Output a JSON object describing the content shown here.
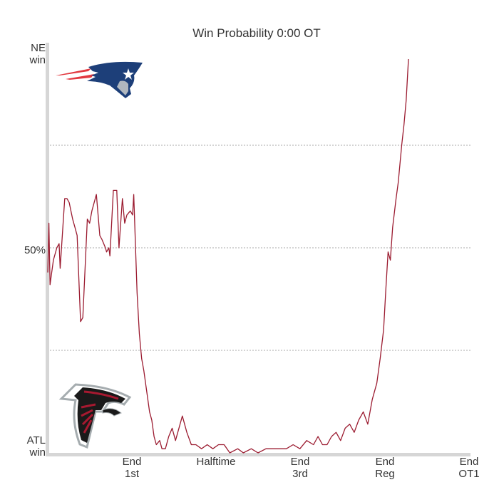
{
  "title": "Win Probability 0:00 OT",
  "y_labels": {
    "top": [
      "NE",
      "win"
    ],
    "middle": "50%",
    "bottom": [
      "ATL",
      "win"
    ]
  },
  "x_labels": [
    {
      "line1": "End",
      "line2": "1st"
    },
    {
      "line1": "Halftime",
      "line2": ""
    },
    {
      "line1": "End",
      "line2": "3rd"
    },
    {
      "line1": "End",
      "line2": "Reg"
    },
    {
      "line1": "End",
      "line2": "OT1"
    }
  ],
  "logos": {
    "top": "patriots-logo",
    "bottom": "falcons-logo"
  },
  "colors": {
    "line": "#9b1b30",
    "axis": "#d6d6d6",
    "grid": "#aaaaaa",
    "text": "#333333"
  },
  "chart_data": {
    "type": "line",
    "title": "Win Probability 0:00 OT",
    "xlabel": "",
    "ylabel": "",
    "ylim": [
      0,
      100
    ],
    "yticks": [
      0,
      25,
      50,
      75,
      100
    ],
    "ytick_labels": {
      "100": "NE win",
      "50": "50%",
      "0": "ATL win"
    },
    "xtick_labels": [
      "End 1st",
      "Halftime",
      "End 3rd",
      "End Reg",
      "End OT1"
    ],
    "grid": "horizontal dotted at 25%, 50%, 75%",
    "series": [
      {
        "name": "NE win probability (%)",
        "points": [
          [
            67,
            44
          ],
          [
            68,
            56
          ],
          [
            69,
            41
          ],
          [
            72,
            47
          ],
          [
            75,
            50
          ],
          [
            77,
            51
          ],
          [
            78,
            45
          ],
          [
            82,
            62
          ],
          [
            84,
            62
          ],
          [
            86,
            61
          ],
          [
            89,
            57
          ],
          [
            91,
            55
          ],
          [
            93,
            53
          ],
          [
            96,
            32
          ],
          [
            98,
            33
          ],
          [
            102,
            57
          ],
          [
            104,
            56
          ],
          [
            106,
            59
          ],
          [
            110,
            63
          ],
          [
            113,
            53
          ],
          [
            115,
            52
          ],
          [
            118,
            50
          ],
          [
            119,
            49
          ],
          [
            121,
            50
          ],
          [
            122,
            48
          ],
          [
            125,
            64
          ],
          [
            128,
            64
          ],
          [
            130,
            50
          ],
          [
            133,
            62
          ],
          [
            135,
            56
          ],
          [
            137,
            58
          ],
          [
            140,
            59
          ],
          [
            142,
            58
          ],
          [
            143,
            63
          ],
          [
            146,
            39
          ],
          [
            148,
            29
          ],
          [
            150,
            23
          ],
          [
            152,
            20
          ],
          [
            155,
            14
          ],
          [
            157,
            10
          ],
          [
            159,
            8
          ],
          [
            161,
            4
          ],
          [
            163,
            2
          ],
          [
            166,
            3
          ],
          [
            168,
            1
          ],
          [
            171,
            1
          ],
          [
            174,
            4
          ],
          [
            177,
            6
          ],
          [
            180,
            3
          ],
          [
            184,
            7
          ],
          [
            186,
            9
          ],
          [
            190,
            5
          ],
          [
            194,
            2
          ],
          [
            198,
            2
          ],
          [
            203,
            1
          ],
          [
            208,
            2
          ],
          [
            213,
            1
          ],
          [
            218,
            2
          ],
          [
            223,
            2
          ],
          [
            228,
            0
          ],
          [
            235,
            1
          ],
          [
            240,
            0
          ],
          [
            247,
            1
          ],
          [
            253,
            0
          ],
          [
            260,
            1
          ],
          [
            266,
            1
          ],
          [
            272,
            1
          ],
          [
            278,
            1
          ],
          [
            284,
            2
          ],
          [
            290,
            1
          ],
          [
            296,
            3
          ],
          [
            302,
            2
          ],
          [
            306,
            4
          ],
          [
            310,
            2
          ],
          [
            314,
            2
          ],
          [
            318,
            4
          ],
          [
            322,
            5
          ],
          [
            326,
            3
          ],
          [
            330,
            6
          ],
          [
            334,
            7
          ],
          [
            338,
            5
          ],
          [
            342,
            8
          ],
          [
            346,
            10
          ],
          [
            350,
            7
          ],
          [
            354,
            13
          ],
          [
            358,
            17
          ],
          [
            361,
            23
          ],
          [
            364,
            30
          ],
          [
            366,
            40
          ],
          [
            368,
            49
          ],
          [
            370,
            47
          ],
          [
            372,
            55
          ],
          [
            375,
            62
          ],
          [
            377,
            66
          ],
          [
            380,
            75
          ],
          [
            382,
            80
          ],
          [
            384,
            86
          ],
          [
            386,
            96
          ]
        ]
      }
    ]
  }
}
